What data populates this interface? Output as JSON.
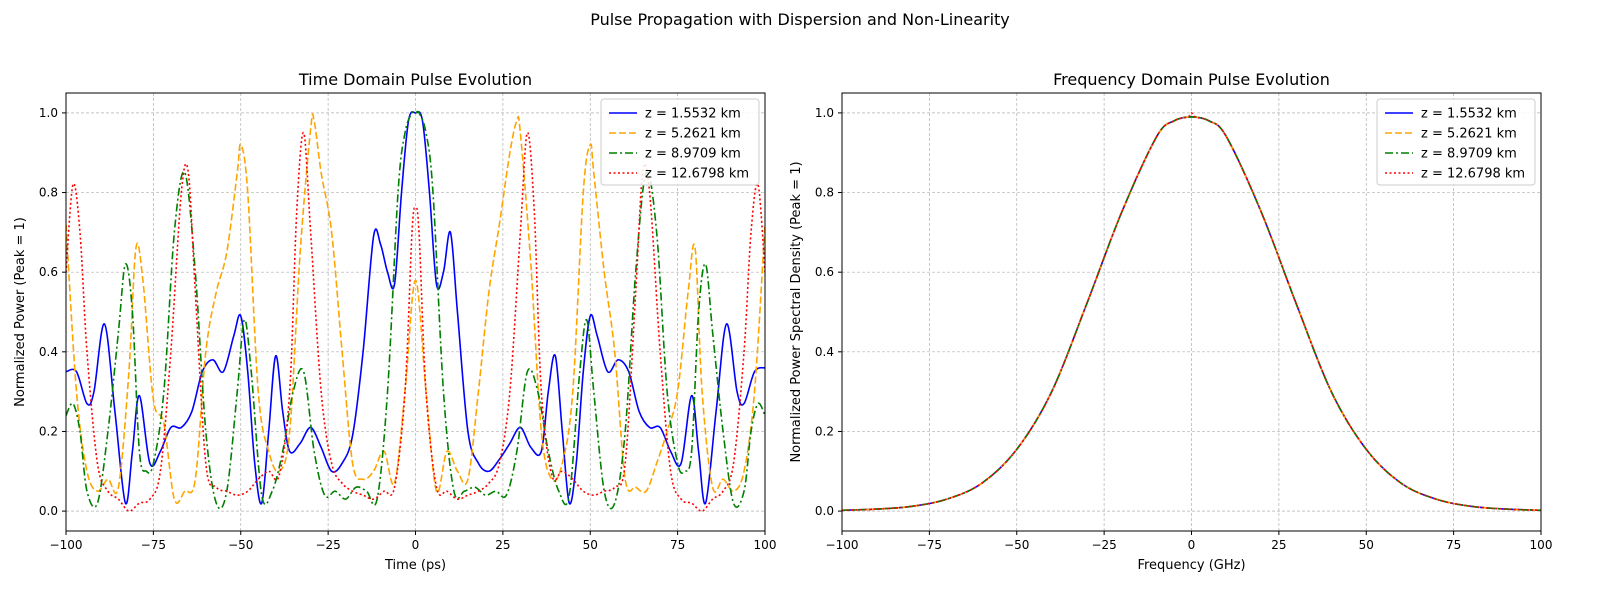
{
  "figure": {
    "suptitle": "Pulse Propagation with Dispersion and Non-Linearity"
  },
  "legend_entries": [
    "z = 1.5532 km",
    "z = 5.2621 km",
    "z = 8.9709 km",
    "z = 12.6798 km"
  ],
  "colors": {
    "series": [
      "#0000ff",
      "#ffa500",
      "#008000",
      "#ff0000"
    ]
  },
  "chart_data": [
    {
      "type": "line",
      "title": "Time Domain Pulse Evolution",
      "xlabel": "Time (ps)",
      "ylabel": "Normalized Power (Peak = 1)",
      "xlim": [
        -100,
        100
      ],
      "ylim": [
        -0.05,
        1.05
      ],
      "xticks": [
        -100,
        -75,
        -50,
        -25,
        0,
        25,
        50,
        75,
        100
      ],
      "yticks": [
        0.0,
        0.2,
        0.4,
        0.6,
        0.8,
        1.0
      ],
      "grid": true,
      "legend": "top-right",
      "series": [
        {
          "name": "z = 1.5532 km",
          "color": "#0000ff",
          "dash": "solid",
          "x": [
            -100,
            -97,
            -94,
            -92,
            -89,
            -86,
            -83,
            -81,
            -79,
            -76,
            -73,
            -70,
            -67,
            -64,
            -61,
            -58,
            -55,
            -52,
            -50,
            -48,
            -46,
            -44,
            -42,
            -40,
            -38,
            -36,
            -33,
            -30,
            -27,
            -24,
            -21,
            -18,
            -15,
            -12,
            -10,
            -8,
            -6,
            -4,
            -2,
            0,
            2,
            4,
            6,
            8,
            10,
            12,
            15,
            18,
            21,
            24,
            27,
            30,
            33,
            36,
            38,
            40,
            42,
            44,
            46,
            48,
            50,
            52,
            55,
            58,
            61,
            64,
            67,
            70,
            73,
            76,
            79,
            81,
            83,
            86,
            89,
            92,
            94,
            97,
            100
          ],
          "y": [
            0.35,
            0.35,
            0.27,
            0.3,
            0.47,
            0.25,
            0.02,
            0.15,
            0.29,
            0.12,
            0.15,
            0.21,
            0.21,
            0.25,
            0.35,
            0.38,
            0.35,
            0.44,
            0.49,
            0.35,
            0.12,
            0.02,
            0.2,
            0.39,
            0.25,
            0.15,
            0.17,
            0.21,
            0.16,
            0.1,
            0.12,
            0.19,
            0.4,
            0.69,
            0.67,
            0.6,
            0.57,
            0.8,
            0.98,
            1.0,
            0.98,
            0.8,
            0.57,
            0.6,
            0.7,
            0.5,
            0.2,
            0.12,
            0.1,
            0.13,
            0.17,
            0.21,
            0.16,
            0.15,
            0.3,
            0.39,
            0.2,
            0.02,
            0.12,
            0.35,
            0.49,
            0.44,
            0.35,
            0.38,
            0.35,
            0.25,
            0.21,
            0.21,
            0.15,
            0.12,
            0.29,
            0.15,
            0.02,
            0.25,
            0.47,
            0.3,
            0.27,
            0.35,
            0.36
          ]
        },
        {
          "name": "z = 5.2621 km",
          "color": "#ffa500",
          "dash": "dashed",
          "x": [
            -100,
            -97,
            -94,
            -91,
            -88,
            -85,
            -82,
            -80,
            -78,
            -75,
            -72,
            -69,
            -66,
            -63,
            -60,
            -57,
            -54,
            -51,
            -50,
            -48,
            -45,
            -42,
            -39,
            -36,
            -33,
            -30,
            -29,
            -27,
            -24,
            -21,
            -18,
            -15,
            -12,
            -9,
            -6,
            -3,
            0,
            3,
            6,
            9,
            12,
            15,
            18,
            21,
            24,
            27,
            29,
            30,
            33,
            36,
            39,
            42,
            45,
            48,
            50,
            51,
            54,
            57,
            60,
            63,
            66,
            69,
            72,
            75,
            78,
            80,
            82,
            85,
            88,
            91,
            94,
            97,
            100
          ],
          "y": [
            0.72,
            0.3,
            0.1,
            0.05,
            0.08,
            0.06,
            0.35,
            0.66,
            0.58,
            0.28,
            0.22,
            0.03,
            0.05,
            0.08,
            0.4,
            0.55,
            0.65,
            0.85,
            0.92,
            0.8,
            0.3,
            0.15,
            0.1,
            0.2,
            0.65,
            0.96,
            0.98,
            0.85,
            0.7,
            0.4,
            0.12,
            0.08,
            0.1,
            0.15,
            0.07,
            0.3,
            0.58,
            0.3,
            0.05,
            0.15,
            0.1,
            0.08,
            0.3,
            0.55,
            0.72,
            0.9,
            0.98,
            0.95,
            0.62,
            0.2,
            0.08,
            0.12,
            0.3,
            0.8,
            0.92,
            0.85,
            0.6,
            0.4,
            0.08,
            0.06,
            0.05,
            0.12,
            0.2,
            0.3,
            0.55,
            0.66,
            0.3,
            0.06,
            0.08,
            0.05,
            0.1,
            0.3,
            0.72
          ]
        },
        {
          "name": "z = 8.9709 km",
          "color": "#008000",
          "dash": "dashdot",
          "x": [
            -100,
            -98,
            -96,
            -94,
            -91,
            -88,
            -85,
            -83,
            -81,
            -79,
            -77,
            -75,
            -72,
            -69,
            -66,
            -63,
            -60,
            -57,
            -54,
            -51,
            -49,
            -47,
            -44,
            -41,
            -38,
            -35,
            -32,
            -29,
            -26,
            -23,
            -20,
            -17,
            -14,
            -11,
            -8,
            -5,
            -3,
            -1,
            0,
            1,
            3,
            5,
            8,
            11,
            14,
            17,
            20,
            23,
            26,
            29,
            32,
            35,
            38,
            41,
            44,
            47,
            49,
            51,
            54,
            57,
            60,
            63,
            66,
            69,
            72,
            75,
            77,
            79,
            81,
            83,
            85,
            88,
            91,
            94,
            96,
            98,
            100
          ],
          "y": [
            0.24,
            0.27,
            0.2,
            0.05,
            0.02,
            0.2,
            0.45,
            0.62,
            0.5,
            0.15,
            0.1,
            0.12,
            0.3,
            0.7,
            0.85,
            0.6,
            0.2,
            0.02,
            0.05,
            0.3,
            0.48,
            0.35,
            0.04,
            0.05,
            0.15,
            0.3,
            0.35,
            0.15,
            0.04,
            0.05,
            0.03,
            0.06,
            0.05,
            0.03,
            0.3,
            0.8,
            0.95,
            1.0,
            1.0,
            1.0,
            0.95,
            0.8,
            0.3,
            0.05,
            0.05,
            0.06,
            0.04,
            0.05,
            0.04,
            0.15,
            0.35,
            0.3,
            0.15,
            0.05,
            0.04,
            0.35,
            0.48,
            0.3,
            0.05,
            0.02,
            0.2,
            0.6,
            0.85,
            0.7,
            0.3,
            0.12,
            0.1,
            0.15,
            0.5,
            0.62,
            0.45,
            0.2,
            0.02,
            0.05,
            0.2,
            0.27,
            0.24
          ]
        },
        {
          "name": "z = 12.6798 km",
          "color": "#ff0000",
          "dash": "dotted",
          "x": [
            -100,
            -98,
            -96,
            -94,
            -91,
            -88,
            -85,
            -82,
            -79,
            -76,
            -73,
            -70,
            -67,
            -65,
            -63,
            -60,
            -57,
            -54,
            -51,
            -48,
            -45,
            -42,
            -39,
            -36,
            -34,
            -32,
            -30,
            -27,
            -24,
            -21,
            -18,
            -15,
            -12,
            -9,
            -6,
            -3,
            -1,
            0,
            1,
            3,
            6,
            9,
            12,
            15,
            18,
            21,
            24,
            27,
            30,
            32,
            34,
            36,
            39,
            42,
            45,
            48,
            51,
            54,
            57,
            60,
            63,
            65,
            67,
            70,
            73,
            76,
            79,
            82,
            85,
            88,
            91,
            94,
            96,
            98,
            100
          ],
          "y": [
            0.6,
            0.82,
            0.7,
            0.4,
            0.12,
            0.05,
            0.03,
            0.0,
            0.02,
            0.03,
            0.1,
            0.4,
            0.8,
            0.85,
            0.55,
            0.12,
            0.06,
            0.05,
            0.04,
            0.05,
            0.08,
            0.1,
            0.09,
            0.3,
            0.75,
            0.95,
            0.7,
            0.3,
            0.12,
            0.07,
            0.05,
            0.04,
            0.03,
            0.05,
            0.06,
            0.3,
            0.7,
            0.76,
            0.7,
            0.3,
            0.06,
            0.05,
            0.03,
            0.04,
            0.05,
            0.07,
            0.12,
            0.3,
            0.7,
            0.95,
            0.75,
            0.3,
            0.09,
            0.1,
            0.08,
            0.05,
            0.04,
            0.05,
            0.06,
            0.12,
            0.55,
            0.85,
            0.8,
            0.4,
            0.1,
            0.03,
            0.02,
            0.0,
            0.03,
            0.05,
            0.12,
            0.4,
            0.7,
            0.82,
            0.6
          ]
        }
      ]
    },
    {
      "type": "line",
      "title": "Frequency Domain Pulse Evolution",
      "xlabel": "Frequency (GHz)",
      "ylabel": "Normalized Power Spectral Density (Peak = 1)",
      "xlim": [
        -100,
        100
      ],
      "ylim": [
        -0.05,
        1.05
      ],
      "xticks": [
        -100,
        -75,
        -50,
        -25,
        0,
        25,
        50,
        75,
        100
      ],
      "yticks": [
        0.0,
        0.2,
        0.4,
        0.6,
        0.8,
        1.0
      ],
      "grid": true,
      "legend": "top-right",
      "series": [
        {
          "name": "z = 1.5532 km",
          "color": "#0000ff",
          "dash": "solid",
          "x": [
            -100,
            -90,
            -80,
            -70,
            -60,
            -50,
            -40,
            -30,
            -20,
            -10,
            -5,
            0,
            5,
            10,
            20,
            30,
            40,
            50,
            60,
            70,
            80,
            90,
            100
          ],
          "y": [
            0.002,
            0.005,
            0.012,
            0.03,
            0.07,
            0.155,
            0.3,
            0.52,
            0.75,
            0.94,
            0.98,
            0.99,
            0.98,
            0.94,
            0.75,
            0.52,
            0.3,
            0.155,
            0.07,
            0.03,
            0.012,
            0.005,
            0.002
          ]
        },
        {
          "name": "z = 5.2621 km",
          "color": "#ffa500",
          "dash": "dashed",
          "x": [
            -100,
            -90,
            -80,
            -70,
            -60,
            -50,
            -40,
            -30,
            -20,
            -10,
            -5,
            0,
            5,
            10,
            20,
            30,
            40,
            50,
            60,
            70,
            80,
            90,
            100
          ],
          "y": [
            0.002,
            0.005,
            0.012,
            0.03,
            0.07,
            0.155,
            0.3,
            0.52,
            0.75,
            0.94,
            0.98,
            0.99,
            0.98,
            0.94,
            0.75,
            0.52,
            0.3,
            0.155,
            0.07,
            0.03,
            0.012,
            0.005,
            0.002
          ]
        },
        {
          "name": "z = 8.9709 km",
          "color": "#008000",
          "dash": "dashdot",
          "x": [
            -100,
            -90,
            -80,
            -70,
            -60,
            -50,
            -40,
            -30,
            -20,
            -10,
            -5,
            0,
            5,
            10,
            20,
            30,
            40,
            50,
            60,
            70,
            80,
            90,
            100
          ],
          "y": [
            0.002,
            0.005,
            0.012,
            0.03,
            0.07,
            0.155,
            0.3,
            0.52,
            0.75,
            0.94,
            0.98,
            0.99,
            0.98,
            0.94,
            0.75,
            0.52,
            0.3,
            0.155,
            0.07,
            0.03,
            0.012,
            0.005,
            0.002
          ]
        },
        {
          "name": "z = 12.6798 km",
          "color": "#ff0000",
          "dash": "dotted",
          "x": [
            -100,
            -90,
            -80,
            -70,
            -60,
            -50,
            -40,
            -30,
            -20,
            -10,
            -5,
            -1,
            0,
            1,
            5,
            10,
            20,
            30,
            40,
            50,
            60,
            70,
            80,
            90,
            100
          ],
          "y": [
            0.002,
            0.005,
            0.012,
            0.03,
            0.07,
            0.155,
            0.3,
            0.52,
            0.75,
            0.94,
            0.98,
            0.99,
            1.0,
            0.99,
            0.98,
            0.94,
            0.75,
            0.52,
            0.3,
            0.155,
            0.07,
            0.03,
            0.012,
            0.005,
            0.002
          ]
        }
      ]
    }
  ]
}
